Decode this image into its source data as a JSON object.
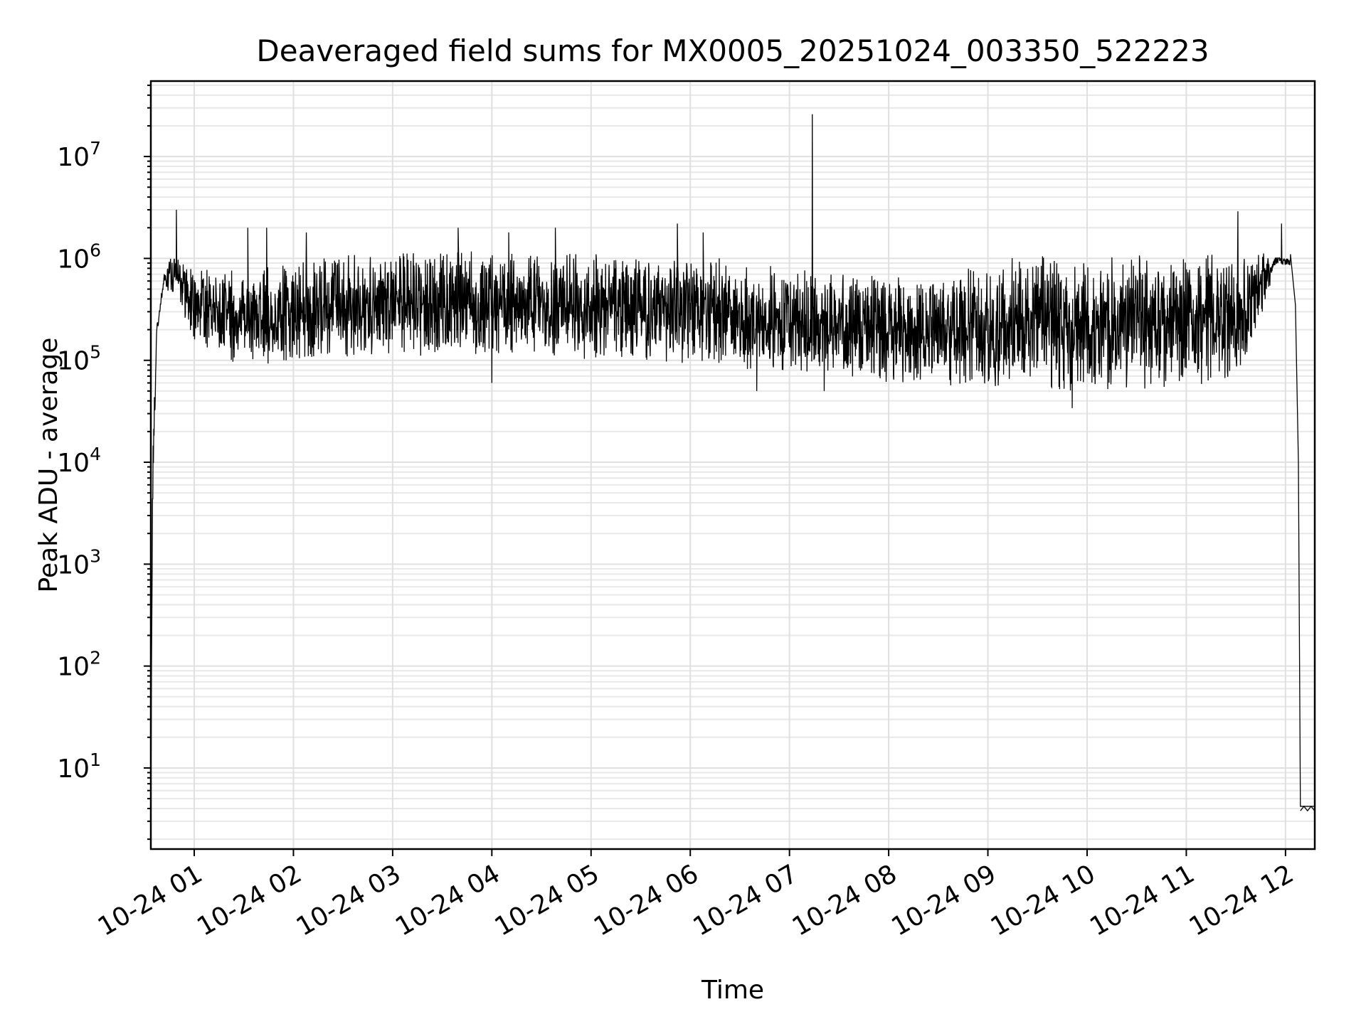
{
  "chart_data": {
    "type": "line",
    "title": "Deaveraged field sums for MX0005_20251024_003350_522223",
    "xlabel": "Time",
    "ylabel": "Peak ADU - average",
    "yscale": "log",
    "ylim": [
      1.6,
      55000000
    ],
    "xlim_hours": [
      0.5625,
      12.295
    ],
    "grid": true,
    "line_color": "#000000",
    "x_ticks": [
      {
        "hour": 1,
        "label": "10-24 01"
      },
      {
        "hour": 2,
        "label": "10-24 02"
      },
      {
        "hour": 3,
        "label": "10-24 03"
      },
      {
        "hour": 4,
        "label": "10-24 04"
      },
      {
        "hour": 5,
        "label": "10-24 05"
      },
      {
        "hour": 6,
        "label": "10-24 06"
      },
      {
        "hour": 7,
        "label": "10-24 07"
      },
      {
        "hour": 8,
        "label": "10-24 08"
      },
      {
        "hour": 9,
        "label": "10-24 09"
      },
      {
        "hour": 10,
        "label": "10-24 10"
      },
      {
        "hour": 11,
        "label": "10-24 11"
      },
      {
        "hour": 12,
        "label": "10-24 12"
      }
    ],
    "y_ticks": [
      {
        "exp": 1,
        "base": "10",
        "sup": "1"
      },
      {
        "exp": 2,
        "base": "10",
        "sup": "2"
      },
      {
        "exp": 3,
        "base": "10",
        "sup": "3"
      },
      {
        "exp": 4,
        "base": "10",
        "sup": "4"
      },
      {
        "exp": 5,
        "base": "10",
        "sup": "5"
      },
      {
        "exp": 6,
        "base": "10",
        "sup": "6"
      },
      {
        "exp": 7,
        "base": "10",
        "sup": "7"
      }
    ],
    "envelope": [
      {
        "t": 0.56,
        "low": 1.6,
        "high": 1.6
      },
      {
        "t": 0.58,
        "low": 200,
        "high": 130000
      },
      {
        "t": 0.62,
        "low": 100000,
        "high": 350000
      },
      {
        "t": 0.7,
        "low": 500000,
        "high": 900000
      },
      {
        "t": 0.8,
        "low": 400000,
        "high": 1100000
      },
      {
        "t": 1.0,
        "low": 150000,
        "high": 800000
      },
      {
        "t": 1.5,
        "low": 85000,
        "high": 800000
      },
      {
        "t": 2.0,
        "low": 100000,
        "high": 1000000
      },
      {
        "t": 2.5,
        "low": 100000,
        "high": 1200000
      },
      {
        "t": 3.0,
        "low": 110000,
        "high": 1200000
      },
      {
        "t": 3.5,
        "low": 110000,
        "high": 1200000
      },
      {
        "t": 4.0,
        "low": 110000,
        "high": 1200000
      },
      {
        "t": 4.5,
        "low": 110000,
        "high": 1200000
      },
      {
        "t": 5.0,
        "low": 100000,
        "high": 1200000
      },
      {
        "t": 5.5,
        "low": 100000,
        "high": 1100000
      },
      {
        "t": 6.0,
        "low": 90000,
        "high": 1100000
      },
      {
        "t": 6.5,
        "low": 80000,
        "high": 1000000
      },
      {
        "t": 7.0,
        "low": 75000,
        "high": 800000
      },
      {
        "t": 7.5,
        "low": 65000,
        "high": 700000
      },
      {
        "t": 8.0,
        "low": 60000,
        "high": 700000
      },
      {
        "t": 8.5,
        "low": 55000,
        "high": 600000
      },
      {
        "t": 9.0,
        "low": 55000,
        "high": 1000000
      },
      {
        "t": 9.5,
        "low": 50000,
        "high": 1100000
      },
      {
        "t": 10.0,
        "low": 50000,
        "high": 1100000
      },
      {
        "t": 10.5,
        "low": 50000,
        "high": 1100000
      },
      {
        "t": 11.0,
        "low": 55000,
        "high": 1150000
      },
      {
        "t": 11.5,
        "low": 60000,
        "high": 1200000
      },
      {
        "t": 11.8,
        "low": 300000,
        "high": 1200000
      },
      {
        "t": 11.9,
        "low": 700000,
        "high": 1300000
      },
      {
        "t": 12.05,
        "low": 700000,
        "high": 1200000
      }
    ],
    "ramp_down": [
      {
        "t": 12.05,
        "v": 1100000
      },
      {
        "t": 12.1,
        "v": 350000
      },
      {
        "t": 12.13,
        "v": 10000
      },
      {
        "t": 12.15,
        "v": 4.2
      },
      {
        "t": 12.295,
        "v": 4.2
      }
    ],
    "spikes": [
      {
        "t": 0.82,
        "v": 3000000
      },
      {
        "t": 1.54,
        "v": 2000000
      },
      {
        "t": 1.73,
        "v": 2000000
      },
      {
        "t": 2.13,
        "v": 1800000
      },
      {
        "t": 3.66,
        "v": 2000000
      },
      {
        "t": 4.17,
        "v": 1800000
      },
      {
        "t": 4.64,
        "v": 2000000
      },
      {
        "t": 5.87,
        "v": 2200000
      },
      {
        "t": 6.13,
        "v": 1800000
      },
      {
        "t": 7.23,
        "v": 26000000
      },
      {
        "t": 11.52,
        "v": 2900000
      },
      {
        "t": 11.96,
        "v": 2200000
      }
    ],
    "dips": [
      {
        "t": 4.0,
        "v": 60000
      },
      {
        "t": 6.67,
        "v": 50000
      },
      {
        "t": 7.35,
        "v": 50000
      },
      {
        "t": 9.85,
        "v": 34000
      }
    ]
  }
}
